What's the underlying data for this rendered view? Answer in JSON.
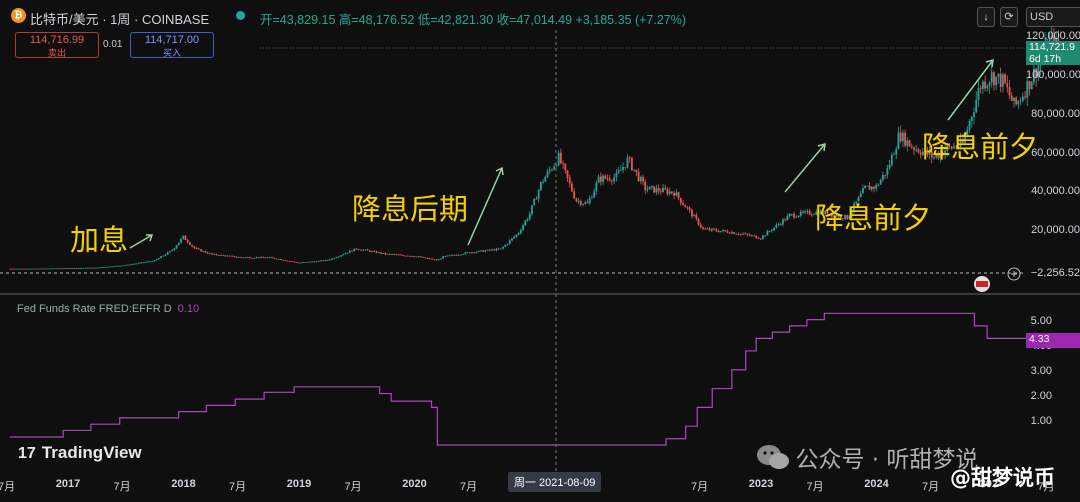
{
  "header": {
    "symbol": "比特币/美元 · 1周 · COINBASE",
    "ohlc": "开=43,829.15 高=48,176.52 低=42,821.30 收=47,014.49 +3,185.35 (+7.27%)",
    "btc_icon": "₿",
    "currency": "USD",
    "download_icon": "↓",
    "refresh_icon": "⟳"
  },
  "trade": {
    "sell_price": "114,716.99",
    "sell_label": "卖出",
    "spread": "0.01",
    "buy_price": "114,717.00",
    "buy_label": "买入"
  },
  "price_axis": {
    "ticks": [
      "120,000.00",
      "100,000.00",
      "80,000.00",
      "60,000.00",
      "40,000.00",
      "20,000.00"
    ],
    "last_price": "114,721.9",
    "countdown": "6d 17h",
    "crosshair_value": "−2,256.52",
    "tick_values": [
      120000,
      100000,
      80000,
      60000,
      40000,
      20000
    ]
  },
  "indicator": {
    "label": "Fed Funds Rate FRED:EFFR D",
    "value": "0.10",
    "last": "4.33",
    "ticks": [
      "5.00",
      "4.00",
      "3.00",
      "2.00",
      "1.00"
    ],
    "tick_values": [
      5,
      4,
      3,
      2,
      1
    ]
  },
  "time_axis": {
    "labels": [
      {
        "t": "7月",
        "year": false,
        "x": 2016.5
      },
      {
        "t": "2017",
        "year": true,
        "x": 2017.0
      },
      {
        "t": "7月",
        "year": false,
        "x": 2017.5
      },
      {
        "t": "2018",
        "year": true,
        "x": 2018.0
      },
      {
        "t": "7月",
        "year": false,
        "x": 2018.5
      },
      {
        "t": "2019",
        "year": true,
        "x": 2019.0
      },
      {
        "t": "7月",
        "year": false,
        "x": 2019.5
      },
      {
        "t": "2020",
        "year": true,
        "x": 2020.0
      },
      {
        "t": "7月",
        "year": false,
        "x": 2020.5
      },
      {
        "t": "2021",
        "year": true,
        "x": 2021.0
      },
      {
        "t": "7月",
        "year": false,
        "x": 2022.5
      },
      {
        "t": "2023",
        "year": true,
        "x": 2023.0
      },
      {
        "t": "7月",
        "year": false,
        "x": 2023.5
      },
      {
        "t": "2024",
        "year": true,
        "x": 2024.0
      },
      {
        "t": "7月",
        "year": false,
        "x": 2024.5
      },
      {
        "t": "202",
        "year": true,
        "x": 2025.0
      },
      {
        "t": "7月",
        "year": false,
        "x": 2025.5
      }
    ],
    "crosshair_label": "周一  2021-08-09"
  },
  "annotations": [
    {
      "text": "加息"
    },
    {
      "text": "降息后期"
    },
    {
      "text": "降息前夕"
    },
    {
      "text": "降息前夕"
    }
  ],
  "branding": {
    "tv_logo": "17",
    "tv_name": "TradingView",
    "wechat": "公众号 · 听甜梦说",
    "wechat_icon": "wechat-icon",
    "weibo": "@甜梦说币"
  },
  "colors": {
    "up": "#26a69a",
    "down": "#ef5350",
    "rate": "#ab47bc",
    "annotation": "#f5d000",
    "arrow": "#9ad3a8"
  },
  "chart_data": [
    {
      "type": "candlestick",
      "series": [
        {
          "name": "比特币/美元",
          "x_unit": "year",
          "x": [
            2016.5,
            2016.75,
            2017.0,
            2017.25,
            2017.5,
            2017.75,
            2017.9,
            2018.0,
            2018.1,
            2018.25,
            2018.5,
            2018.75,
            2019.0,
            2019.25,
            2019.5,
            2019.75,
            2020.0,
            2020.2,
            2020.25,
            2020.5,
            2020.75,
            2020.9,
            2021.0,
            2021.1,
            2021.25,
            2021.4,
            2021.5,
            2021.6,
            2021.75,
            2021.85,
            2022.0,
            2022.25,
            2022.4,
            2022.5,
            2022.75,
            2023.0,
            2023.25,
            2023.5,
            2023.75,
            2023.9,
            2024.0,
            2024.1,
            2024.2,
            2024.3,
            2024.5,
            2024.6,
            2024.75,
            2024.9,
            2025.0,
            2025.1,
            2025.2,
            2025.3,
            2025.4,
            2025.5,
            2025.6
          ],
          "values": [
            650,
            700,
            900,
            1200,
            2500,
            4800,
            10000,
            17000,
            11000,
            8000,
            6500,
            6400,
            3700,
            5000,
            11000,
            8200,
            7200,
            5000,
            6800,
            9200,
            10800,
            19000,
            29000,
            45000,
            58000,
            36000,
            34000,
            47000,
            48000,
            57000,
            42000,
            40000,
            29000,
            21000,
            19500,
            16600,
            28000,
            30000,
            27000,
            42000,
            43000,
            52000,
            70000,
            64000,
            58000,
            62000,
            65000,
            95000,
            100000,
            97000,
            84000,
            94000,
            105000,
            117000,
            114000
          ]
        }
      ],
      "ylim": [
        0,
        130000
      ]
    },
    {
      "type": "line",
      "series": [
        {
          "name": "Fed Funds Rate FRED:EFFR D",
          "x": [
            2016.5,
            2016.96,
            2017.2,
            2017.45,
            2017.96,
            2018.2,
            2018.45,
            2018.7,
            2018.96,
            2019.55,
            2019.7,
            2019.8,
            2020.15,
            2020.2,
            2021.0,
            2022.18,
            2022.35,
            2022.45,
            2022.58,
            2022.75,
            2022.87,
            2022.96,
            2023.1,
            2023.25,
            2023.4,
            2023.55,
            2024.7,
            2024.85,
            2024.96,
            2025.6
          ],
          "values": [
            0.4,
            0.66,
            0.91,
            1.16,
            1.41,
            1.66,
            1.91,
            2.18,
            2.4,
            2.4,
            2.13,
            1.83,
            1.58,
            0.08,
            0.08,
            0.33,
            0.83,
            1.58,
            2.33,
            3.08,
            3.83,
            4.33,
            4.58,
            4.83,
            5.08,
            5.33,
            5.33,
            4.83,
            4.33,
            4.33
          ]
        }
      ],
      "ylim": [
        0,
        5.6
      ]
    }
  ]
}
